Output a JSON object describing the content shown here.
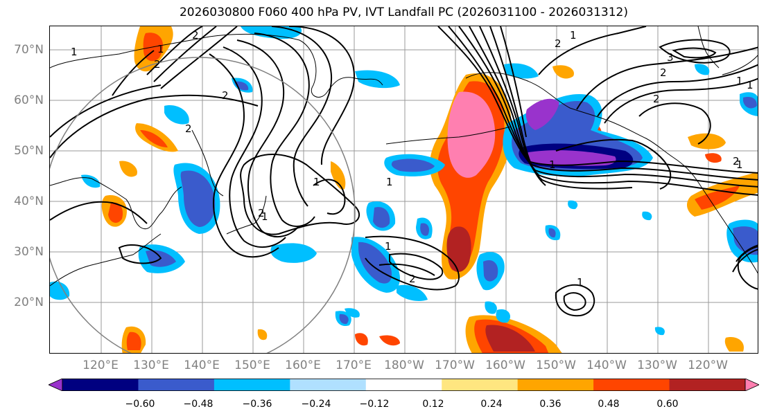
{
  "title": "2026030800 F060 400 hPa PV, IVT Landfall PC (2026031100 - 2026031312)",
  "lat_labels": [
    "70°N",
    "60°N",
    "50°N",
    "40°N",
    "30°N",
    "20°N"
  ],
  "lon_labels": [
    "120°E",
    "130°E",
    "140°E",
    "150°E",
    "160°E",
    "170°E",
    "180°W",
    "170°W",
    "160°W",
    "150°W",
    "140°W",
    "130°W",
    "120°W"
  ],
  "colorbar": {
    "colors": [
      "#9933cc",
      "#000080",
      "#3a5bcc",
      "#00bfff",
      "#b0e0ff",
      "#ffffff",
      "#ffe680",
      "#ffa500",
      "#ff4500",
      "#b22222",
      "#ff7fb0"
    ],
    "tick_labels": [
      "−0.60",
      "−0.48",
      "−0.36",
      "−0.24",
      "−0.12",
      "0.12",
      "0.24",
      "0.36",
      "0.48",
      "0.60"
    ]
  },
  "contour_labels": [
    "1",
    "2",
    "1",
    "2",
    "1",
    "2",
    "1",
    "2",
    "2",
    "1",
    "2",
    "3",
    "2",
    "1",
    "1",
    "2",
    "1",
    "1",
    "2",
    "1",
    "2",
    "1",
    "1"
  ]
}
